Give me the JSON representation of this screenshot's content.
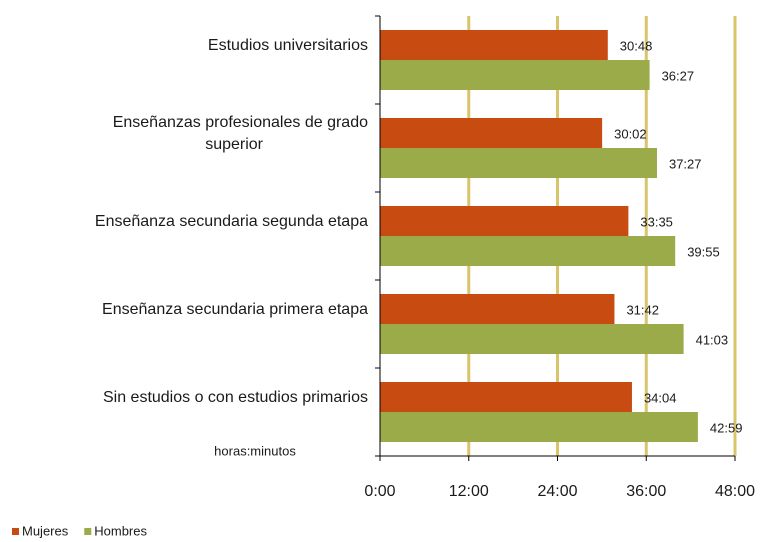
{
  "chart_data": {
    "type": "barh",
    "annotation": "horas:minutos",
    "categories": [
      "Estudios universitarios",
      "Enseñanzas profesionales de grado superior",
      "Enseñanza secundaria segunda etapa",
      "Enseñanza secundaria primera etapa",
      "Sin estudios o con estudios primarios"
    ],
    "series": [
      {
        "name": "Mujeres",
        "color": "#c84b12",
        "values": [
          1848,
          1802,
          2015,
          1902,
          2044
        ],
        "value_labels": [
          "30:48",
          "30:02",
          "33:35",
          "31:42",
          "34:04"
        ]
      },
      {
        "name": "Hombres",
        "color": "#9bab4a",
        "values": [
          2187,
          2247,
          2395,
          2463,
          2579
        ],
        "value_labels": [
          "36:27",
          "37:27",
          "39:55",
          "41:03",
          "42:59"
        ]
      }
    ],
    "xlim": [
      0,
      2880
    ],
    "xticks": [
      {
        "value": 0,
        "label": "0:00"
      },
      {
        "value": 720,
        "label": "12:00"
      },
      {
        "value": 1440,
        "label": "24:00"
      },
      {
        "value": 2160,
        "label": "36:00"
      },
      {
        "value": 2880,
        "label": "48:00"
      }
    ],
    "grid": true,
    "grid_color": "#d9c46c",
    "legend": "bottom-left"
  }
}
